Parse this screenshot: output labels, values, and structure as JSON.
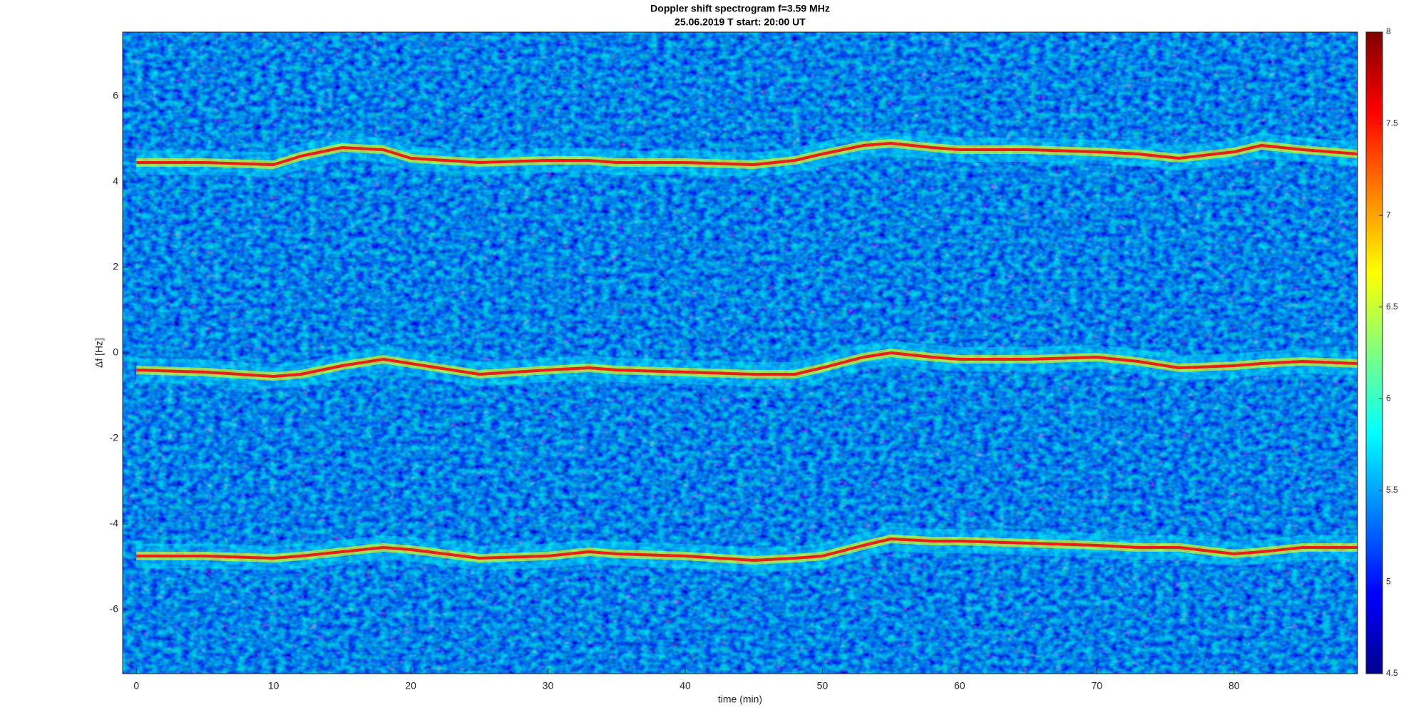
{
  "chart_data": {
    "type": "spectrogram",
    "title": "Doppler shift spectrogram f=3.59 MHz",
    "subtitle": "25.06.2019   T start: 20:00 UT",
    "x_label": "time (min)",
    "y_label": "Δf [Hz]",
    "xlim": [
      -1,
      89
    ],
    "ylim": [
      -7.5,
      7.5
    ],
    "xticks": [
      0,
      10,
      20,
      30,
      40,
      50,
      60,
      70,
      80
    ],
    "yticks": [
      -6,
      -4,
      -2,
      0,
      2,
      4,
      6
    ],
    "colormap": "jet",
    "clim": [
      4.5,
      8
    ],
    "cticks": [
      4.5,
      5,
      5.5,
      6,
      6.5,
      7,
      7.5,
      8
    ],
    "x": [
      0,
      5,
      10,
      12,
      15,
      18,
      20,
      25,
      30,
      33,
      35,
      40,
      45,
      48,
      50,
      53,
      55,
      58,
      60,
      65,
      70,
      73,
      76,
      80,
      82,
      85,
      89
    ],
    "series": [
      {
        "color": "#e8201a",
        "values": [
          4.45,
          4.45,
          4.4,
          4.6,
          4.8,
          4.75,
          4.55,
          4.45,
          4.5,
          4.5,
          4.45,
          4.45,
          4.4,
          4.5,
          4.65,
          4.85,
          4.9,
          4.8,
          4.75,
          4.75,
          4.7,
          4.65,
          4.55,
          4.7,
          4.85,
          4.75,
          4.65
        ]
      },
      {
        "color": "#e8201a",
        "values": [
          -0.4,
          -0.45,
          -0.55,
          -0.5,
          -0.3,
          -0.15,
          -0.25,
          -0.5,
          -0.4,
          -0.35,
          -0.4,
          -0.45,
          -0.5,
          -0.5,
          -0.35,
          -0.1,
          0.0,
          -0.1,
          -0.15,
          -0.15,
          -0.1,
          -0.2,
          -0.35,
          -0.3,
          -0.25,
          -0.2,
          -0.25
        ]
      },
      {
        "color": "#e8201a",
        "values": [
          -4.75,
          -4.75,
          -4.8,
          -4.75,
          -4.65,
          -4.55,
          -4.6,
          -4.8,
          -4.75,
          -4.65,
          -4.7,
          -4.75,
          -4.85,
          -4.8,
          -4.75,
          -4.5,
          -4.35,
          -4.4,
          -4.4,
          -4.45,
          -4.5,
          -4.55,
          -4.55,
          -4.7,
          -4.65,
          -4.55,
          -4.55
        ]
      }
    ]
  }
}
